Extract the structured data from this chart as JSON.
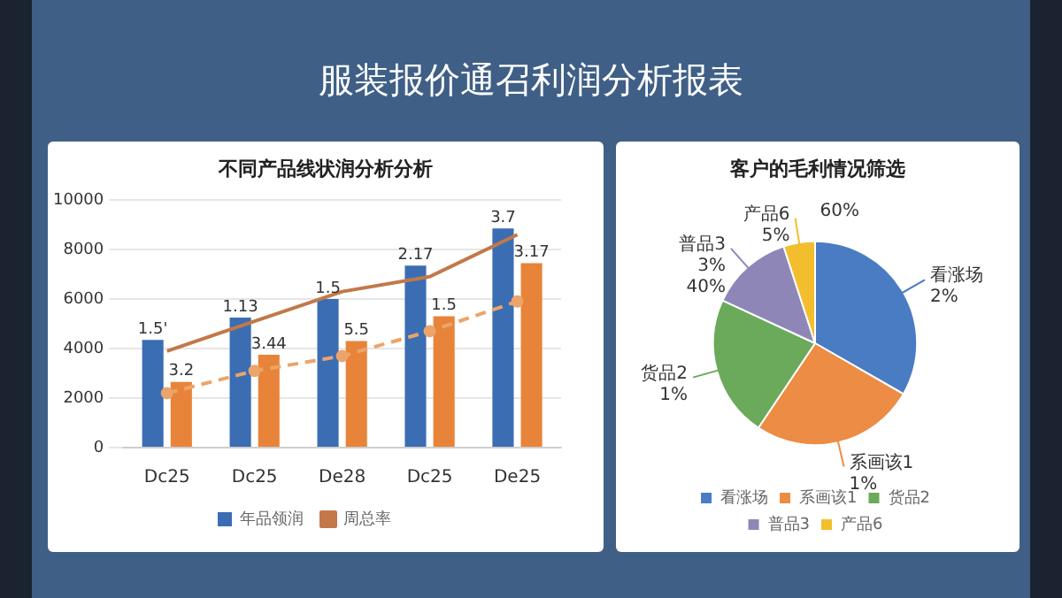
{
  "chart_data": [
    {
      "type": "bar",
      "title": "服装报价通召利润分析报表",
      "subtitle": "不同产品线状润分析分析",
      "categories": [
        "Dc25",
        "Dc25",
        "De28",
        "Dc25",
        "De25"
      ],
      "series": [
        {
          "name": "年品领润",
          "type": "bar",
          "color": "#3b6db3",
          "values": [
            4350,
            5250,
            6000,
            7350,
            8850
          ]
        },
        {
          "type": "bar",
          "color": "#e8843a",
          "values": [
            2650,
            3750,
            4300,
            5300,
            7450
          ]
        },
        {
          "name": "周总率",
          "type": "line",
          "color": "#c27848",
          "line_style": "solid",
          "marker": "none",
          "values": [
            3900,
            5100,
            6300,
            6900,
            8600
          ]
        },
        {
          "type": "line",
          "color": "#eba46a",
          "line_style": "dashed",
          "marker": "circle",
          "values": [
            2200,
            3100,
            3700,
            4700,
            5900
          ]
        }
      ],
      "annotations": [
        "1.5'",
        "1.13",
        "1.5",
        "2.17",
        "3.7",
        "3.2",
        "3.44",
        "5.5",
        "1.5",
        "3.17"
      ],
      "ylim": [
        0,
        10000
      ],
      "yticks": [
        0,
        2000,
        4000,
        6000,
        8000,
        10000
      ],
      "grid": "y",
      "legend": "bottom"
    },
    {
      "type": "pie",
      "title": "客户的毛利情况筛选",
      "categories": [
        "看涨场",
        "系画该1",
        "货品2",
        "普品3",
        "产品6"
      ],
      "values": [
        33.3,
        26.1,
        22.5,
        13.1,
        5.0
      ],
      "colors": [
        "#4a7cc4",
        "#ec8c45",
        "#6aaa5a",
        "#8f86b8",
        "#f3be2e"
      ],
      "annotations": [
        "2%",
        "1%",
        "1%",
        "3%",
        "5%",
        "40%",
        "60%"
      ],
      "legend": "bottom"
    }
  ]
}
